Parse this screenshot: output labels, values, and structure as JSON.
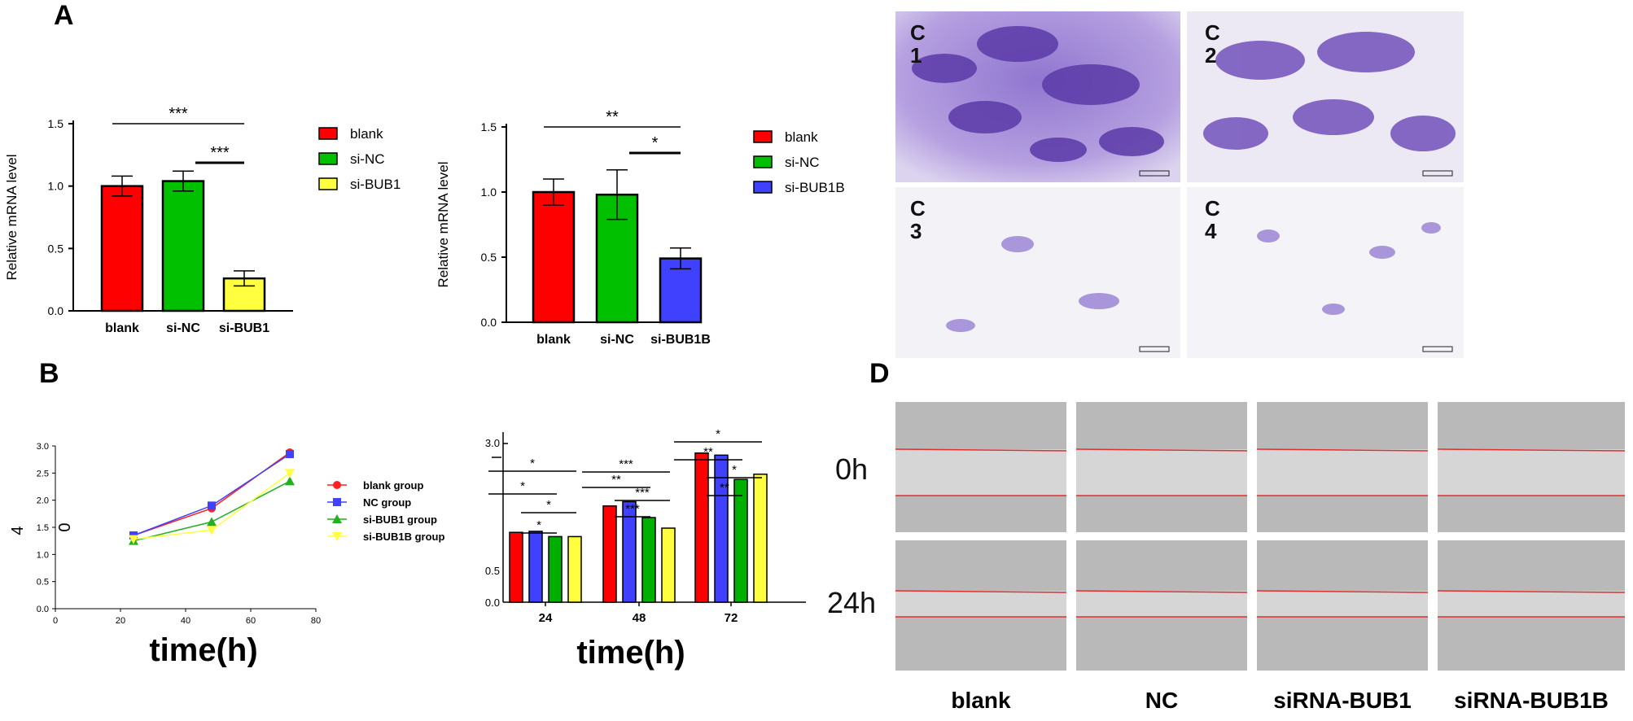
{
  "panels": {
    "A": "A",
    "B": "B",
    "D": "D"
  },
  "chart_data": [
    {
      "type": "bar",
      "id": "A1",
      "categories": [
        "blank",
        "si-NC",
        "si-BUB1"
      ],
      "values": [
        1.0,
        1.04,
        0.26
      ],
      "errors": [
        0.08,
        0.08,
        0.06
      ],
      "colors": [
        "#ff0000",
        "#00c000",
        "#ffff40"
      ],
      "ylabel": "Relative mRNA level",
      "yticks": [
        "0.0",
        "0.5",
        "1.0",
        "1.5"
      ],
      "ylim": [
        0,
        1.5
      ],
      "legend": [
        "blank",
        "si-NC",
        "si-BUB1"
      ],
      "significance": [
        {
          "from": 0,
          "to": 2,
          "label": "***"
        },
        {
          "from": 1,
          "to": 2,
          "label": "***"
        }
      ]
    },
    {
      "type": "bar",
      "id": "A2",
      "categories": [
        "blank",
        "si-NC",
        "si-BUB1B"
      ],
      "values": [
        1.0,
        0.98,
        0.49
      ],
      "errors": [
        0.1,
        0.19,
        0.08
      ],
      "colors": [
        "#ff0000",
        "#00c000",
        "#4040ff"
      ],
      "ylabel": "Relative mRNA level",
      "yticks": [
        "0.0",
        "0.5",
        "1.0",
        "1.5"
      ],
      "ylim": [
        0,
        1.5
      ],
      "legend": [
        "blank",
        "si-NC",
        "si-BUB1B"
      ],
      "significance": [
        {
          "from": 0,
          "to": 2,
          "label": "**"
        },
        {
          "from": 1,
          "to": 2,
          "label": "*"
        }
      ]
    },
    {
      "type": "line",
      "id": "B1",
      "x": [
        24,
        48,
        72
      ],
      "xticks": [
        "0",
        "20",
        "40",
        "60",
        "80"
      ],
      "xlim": [
        0,
        80
      ],
      "yticks": [
        "0.0",
        "0.5",
        "1.0",
        "1.5",
        "2.0",
        "2.5",
        "3.0"
      ],
      "ylim": [
        0,
        3.0
      ],
      "ylabel_fragment": "4\n0",
      "xlabel": "time(h)",
      "series": [
        {
          "name": "blank group",
          "values": [
            1.35,
            1.85,
            2.88
          ],
          "color": "#ff2020",
          "marker": "circle"
        },
        {
          "name": "NC group",
          "values": [
            1.35,
            1.9,
            2.85
          ],
          "color": "#4040ff",
          "marker": "square"
        },
        {
          "name": "si-BUB1 group",
          "values": [
            1.25,
            1.6,
            2.35
          ],
          "color": "#20b020",
          "marker": "triangle-up"
        },
        {
          "name": "si-BUB1B group",
          "values": [
            1.28,
            1.45,
            2.5
          ],
          "color": "#ffff40",
          "marker": "triangle-down"
        }
      ]
    },
    {
      "type": "bar",
      "id": "B2",
      "categories": [
        "24",
        "48",
        "72"
      ],
      "xlabel": "time(h)",
      "ytick_labels": [
        "0.0",
        "0.5",
        "3.0"
      ],
      "ylim": [
        0,
        3.0
      ],
      "series_colors": [
        "#ff0000",
        "#4040ff",
        "#00b000",
        "#ffff40"
      ],
      "values": [
        [
          1.32,
          1.34,
          1.24,
          1.24
        ],
        [
          1.82,
          1.9,
          1.6,
          1.4
        ],
        [
          2.82,
          2.78,
          2.32,
          2.42
        ]
      ],
      "significance": [
        [
          "*",
          "*",
          "*",
          "*"
        ],
        [
          "***",
          "**",
          "***",
          "***"
        ],
        [
          "*",
          "**",
          "*",
          "**"
        ]
      ]
    }
  ],
  "panel_C": {
    "labels": [
      "C\n1",
      "C\n2",
      "C\n3",
      "C\n4"
    ]
  },
  "panel_D": {
    "row_labels": [
      "0h",
      "24h"
    ],
    "col_labels": [
      "blank",
      "NC",
      "siRNA-BUB1",
      "siRNA-BUB1B"
    ]
  }
}
